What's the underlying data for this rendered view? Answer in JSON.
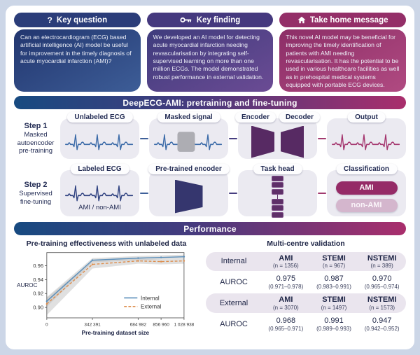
{
  "cards": [
    {
      "title": "Key question",
      "icon": "question-icon",
      "body": "Can an electrocardiogram (ECG) based artificial intelligence (AI) model be useful for improvement in the timely diagnosis of acute myocardial infarction (AMI)?"
    },
    {
      "title": "Key finding",
      "icon": "key-icon",
      "body": "We developed an AI model for detecting acute myocardial infarction needing revascularisation by integrating self-supervised learning on more than one million ECGs. The model demonstrated robust performance in external validation."
    },
    {
      "title": "Take home message",
      "icon": "home-icon",
      "body": "This novel AI model may be beneficial for improving the timely identification of patients with AMI needing revascularisation. It has the potential to be used in various healthcare facilities as well as in prehospital medical systems equipped with portable ECG devices."
    }
  ],
  "pipeline": {
    "title": "DeepECG-AMI: pretraining and fine-tuning",
    "steps": [
      {
        "step": "Step 1",
        "desc": "Masked autoencoder pre-training",
        "boxes": [
          "Unlabeled ECG",
          "Masked signal",
          "Encoder",
          "Decoder",
          "Output"
        ]
      },
      {
        "step": "Step 2",
        "desc": "Supervised fine-tuning",
        "boxes": [
          "Labeled ECG",
          "Pre-trained encoder",
          "Task head",
          "Classification"
        ],
        "caption": "AMI / non-AMI",
        "classes": [
          "AMI",
          "non-AMI"
        ]
      }
    ]
  },
  "performance": {
    "title": "Performance",
    "table": {
      "title": "Multi-centre validation",
      "groups": [
        {
          "label": "Internal",
          "metric": "AUROC",
          "columns": [
            {
              "name": "AMI",
              "n": "(n = 1356)"
            },
            {
              "name": "STEMI",
              "n": "(n = 967)"
            },
            {
              "name": "NSTEMI",
              "n": "(n = 389)"
            }
          ],
          "values": [
            {
              "value": "0.975",
              "ci": "(0.971–0.978)"
            },
            {
              "value": "0.987",
              "ci": "(0.983–0.991)"
            },
            {
              "value": "0.970",
              "ci": "(0.965–0.974)"
            }
          ]
        },
        {
          "label": "External",
          "metric": "AUROC",
          "columns": [
            {
              "name": "AMI",
              "n": "(n = 3070)"
            },
            {
              "name": "STEMI",
              "n": "(n = 1497)"
            },
            {
              "name": "NSTEMI",
              "n": "(n = 1573)"
            }
          ],
          "values": [
            {
              "value": "0.968",
              "ci": "(0.965–0.971)"
            },
            {
              "value": "0.991",
              "ci": "(0.989–0.993)"
            },
            {
              "value": "0.947",
              "ci": "(0.942–0.952)"
            }
          ]
        }
      ]
    }
  },
  "chart_data": {
    "type": "line",
    "title": "Pre-training effectiveness with unlabeled data",
    "xlabel": "Pre-training dataset size",
    "ylabel": "AUROC",
    "x": [
      0,
      342391,
      684982,
      856960,
      1028938
    ],
    "x_tick_labels": [
      "0",
      "342 391",
      "684 982",
      "856 960",
      "1 028 938"
    ],
    "y_ticks": [
      0.9,
      0.92,
      0.94,
      0.96
    ],
    "ylim": [
      0.885,
      0.979
    ],
    "grid": false,
    "legend_position": "lower right",
    "series": [
      {
        "name": "Internal",
        "color": "#5b8fba",
        "style": "solid",
        "values": [
          0.909,
          0.968,
          0.971,
          0.972,
          0.973
        ],
        "ci_lower": [
          0.901,
          0.965,
          0.968,
          0.969,
          0.97
        ],
        "ci_upper": [
          0.915,
          0.971,
          0.974,
          0.975,
          0.976
        ]
      },
      {
        "name": "External",
        "color": "#dd8e4e",
        "style": "dashed",
        "values": [
          0.905,
          0.962,
          0.967,
          0.966,
          0.967
        ],
        "ci_lower": [
          0.889,
          0.956,
          0.963,
          0.962,
          0.963
        ],
        "ci_upper": [
          0.914,
          0.967,
          0.97,
          0.969,
          0.97
        ]
      }
    ]
  },
  "colors": {
    "background": "#ccd6e7",
    "panel": "#ffffff",
    "key_question": "#2b3d79",
    "key_finding": "#45397e",
    "take_home": "#942f68",
    "section_gradient": [
      "#174a80",
      "#453b7e",
      "#a92e6c"
    ],
    "internal_line": "#5b8fba",
    "external_line": "#dd8e4e",
    "ci_band": "#bbbbbb",
    "ecg_blue": "#3a6aa8",
    "ecg_navy": "#2e4180",
    "ecg_magenta": "#a4356e",
    "mask_gray": "#adadb3",
    "encoder_purple": "#572a63",
    "pretrained_encoder": "#35366e",
    "ami_pill": "#952b67",
    "non_ami_pill": "#d4b6cd",
    "box_gray": "#ebeaf1"
  }
}
